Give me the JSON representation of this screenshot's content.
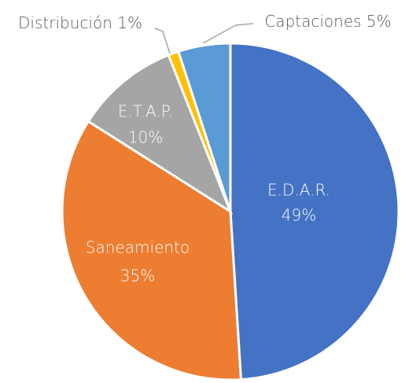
{
  "chart_data": {
    "type": "pie",
    "categories": [
      "E.D.A.R.",
      "Saneamiento",
      "E.T.A.P.",
      "Distribución",
      "Captaciones"
    ],
    "values": [
      49,
      35,
      10,
      1,
      5
    ],
    "value_labels": [
      "49%",
      "35%",
      "10%",
      "1%",
      "5%"
    ],
    "colors": [
      "#4472c4",
      "#ed7d31",
      "#a5a5a5",
      "#ffc000",
      "#5b9bd5"
    ]
  }
}
